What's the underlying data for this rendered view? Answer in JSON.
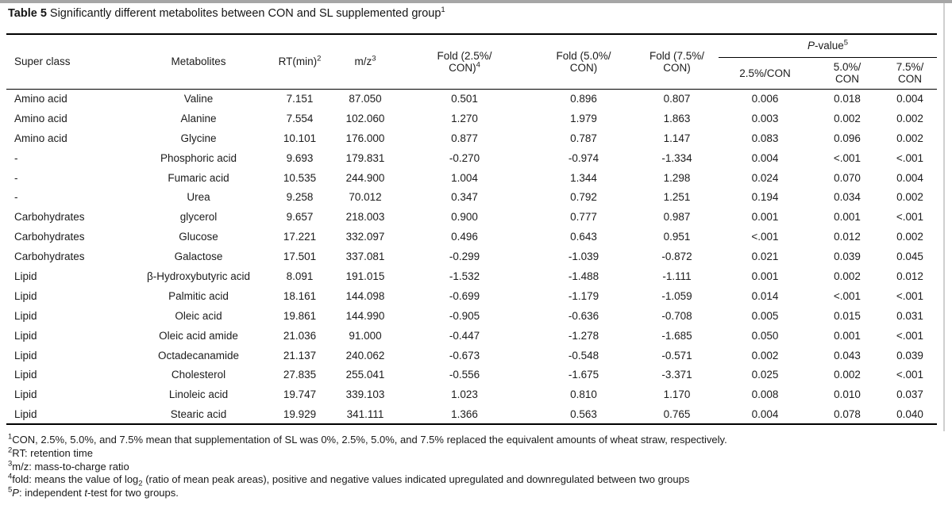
{
  "title": {
    "bold": "Table 5",
    "text": " Significantly different metabolites between CON and SL supplemented group",
    "sup": "1"
  },
  "header": {
    "super_class": "Super class",
    "metabolites": "Metabolites",
    "rt": {
      "text": "RT(min)",
      "sup": "2"
    },
    "mz": {
      "text": "m/z",
      "sup": "3"
    },
    "fold_25": {
      "line1": "Fold (2.5%/",
      "line2": "CON)",
      "sup": "4"
    },
    "fold_50": {
      "line1": "Fold (5.0%/",
      "line2": "CON)"
    },
    "fold_75": {
      "line1": "Fold (7.5%/",
      "line2": "CON)"
    },
    "pvalue": {
      "italic": "P",
      "text": "-value",
      "sup": "5"
    },
    "p_25": {
      "line1": "2.5%/CON",
      "line2": ""
    },
    "p_50": {
      "line1": "5.0%/",
      "line2": "CON"
    },
    "p_75": {
      "line1": "7.5%/",
      "line2": "CON"
    }
  },
  "rows": [
    [
      "Amino acid",
      "Valine",
      "7.151",
      "87.050",
      "0.501",
      "0.896",
      "0.807",
      "0.006",
      "0.018",
      "0.004"
    ],
    [
      "Amino acid",
      "Alanine",
      "7.554",
      "102.060",
      "1.270",
      "1.979",
      "1.863",
      "0.003",
      "0.002",
      "0.002"
    ],
    [
      "Amino acid",
      "Glycine",
      "10.101",
      "176.000",
      "0.877",
      "0.787",
      "1.147",
      "0.083",
      "0.096",
      "0.002"
    ],
    [
      "-",
      "Phosphoric acid",
      "9.693",
      "179.831",
      "-0.270",
      "-0.974",
      "-1.334",
      "0.004",
      "<.001",
      "<.001"
    ],
    [
      "-",
      "Fumaric acid",
      "10.535",
      "244.900",
      "1.004",
      "1.344",
      "1.298",
      "0.024",
      "0.070",
      "0.004"
    ],
    [
      "-",
      "Urea",
      "9.258",
      "70.012",
      "0.347",
      "0.792",
      "1.251",
      "0.194",
      "0.034",
      "0.002"
    ],
    [
      "Carbohydrates",
      "glycerol",
      "9.657",
      "218.003",
      "0.900",
      "0.777",
      "0.987",
      "0.001",
      "0.001",
      "<.001"
    ],
    [
      "Carbohydrates",
      "Glucose",
      "17.221",
      "332.097",
      "0.496",
      "0.643",
      "0.951",
      "<.001",
      "0.012",
      "0.002"
    ],
    [
      "Carbohydrates",
      "Galactose",
      "17.501",
      "337.081",
      "-0.299",
      "-1.039",
      "-0.872",
      "0.021",
      "0.039",
      "0.045"
    ],
    [
      "Lipid",
      "β-Hydroxybutyric acid",
      "8.091",
      "191.015",
      "-1.532",
      "-1.488",
      "-1.111",
      "0.001",
      "0.002",
      "0.012"
    ],
    [
      "Lipid",
      "Palmitic acid",
      "18.161",
      "144.098",
      "-0.699",
      "-1.179",
      "-1.059",
      "0.014",
      "<.001",
      "<.001"
    ],
    [
      "Lipid",
      "Oleic acid",
      "19.861",
      "144.990",
      "-0.905",
      "-0.636",
      "-0.708",
      "0.005",
      "0.015",
      "0.031"
    ],
    [
      "Lipid",
      "Oleic acid amide",
      "21.036",
      "91.000",
      "-0.447",
      "-1.278",
      "-1.685",
      "0.050",
      "0.001",
      "<.001"
    ],
    [
      "Lipid",
      "Octadecanamide",
      "21.137",
      "240.062",
      "-0.673",
      "-0.548",
      "-0.571",
      "0.002",
      "0.043",
      "0.039"
    ],
    [
      "Lipid",
      "Cholesterol",
      "27.835",
      "255.041",
      "-0.556",
      "-1.675",
      "-3.371",
      "0.025",
      "0.002",
      "<.001"
    ],
    [
      "Lipid",
      "Linoleic acid",
      "19.747",
      "339.103",
      "1.023",
      "0.810",
      "1.170",
      "0.008",
      "0.010",
      "0.037"
    ],
    [
      "Lipid",
      "Stearic acid",
      "19.929",
      "341.111",
      "1.366",
      "0.563",
      "0.765",
      "0.004",
      "0.078",
      "0.040"
    ]
  ],
  "footnotes": {
    "f1": {
      "sup": "1",
      "text": "CON, 2.5%, 5.0%, and 7.5% mean that supplementation of SL was 0%, 2.5%, 5.0%, and 7.5% replaced the equivalent amounts of wheat straw, respectively."
    },
    "f2": {
      "sup": "2",
      "text": "RT: retention time"
    },
    "f3": {
      "sup": "3",
      "text": "m/z: mass-to-charge ratio"
    },
    "f4": {
      "sup": "4",
      "pre": "fold: means the value of log",
      "sub": "2",
      "post": " (ratio of mean peak areas), positive and negative values indicated upregulated and downregulated between two groups"
    },
    "f5": {
      "sup": "5",
      "i1": "P",
      "mid": ": independent ",
      "i2": "t",
      "post": "-test for two groups."
    }
  }
}
